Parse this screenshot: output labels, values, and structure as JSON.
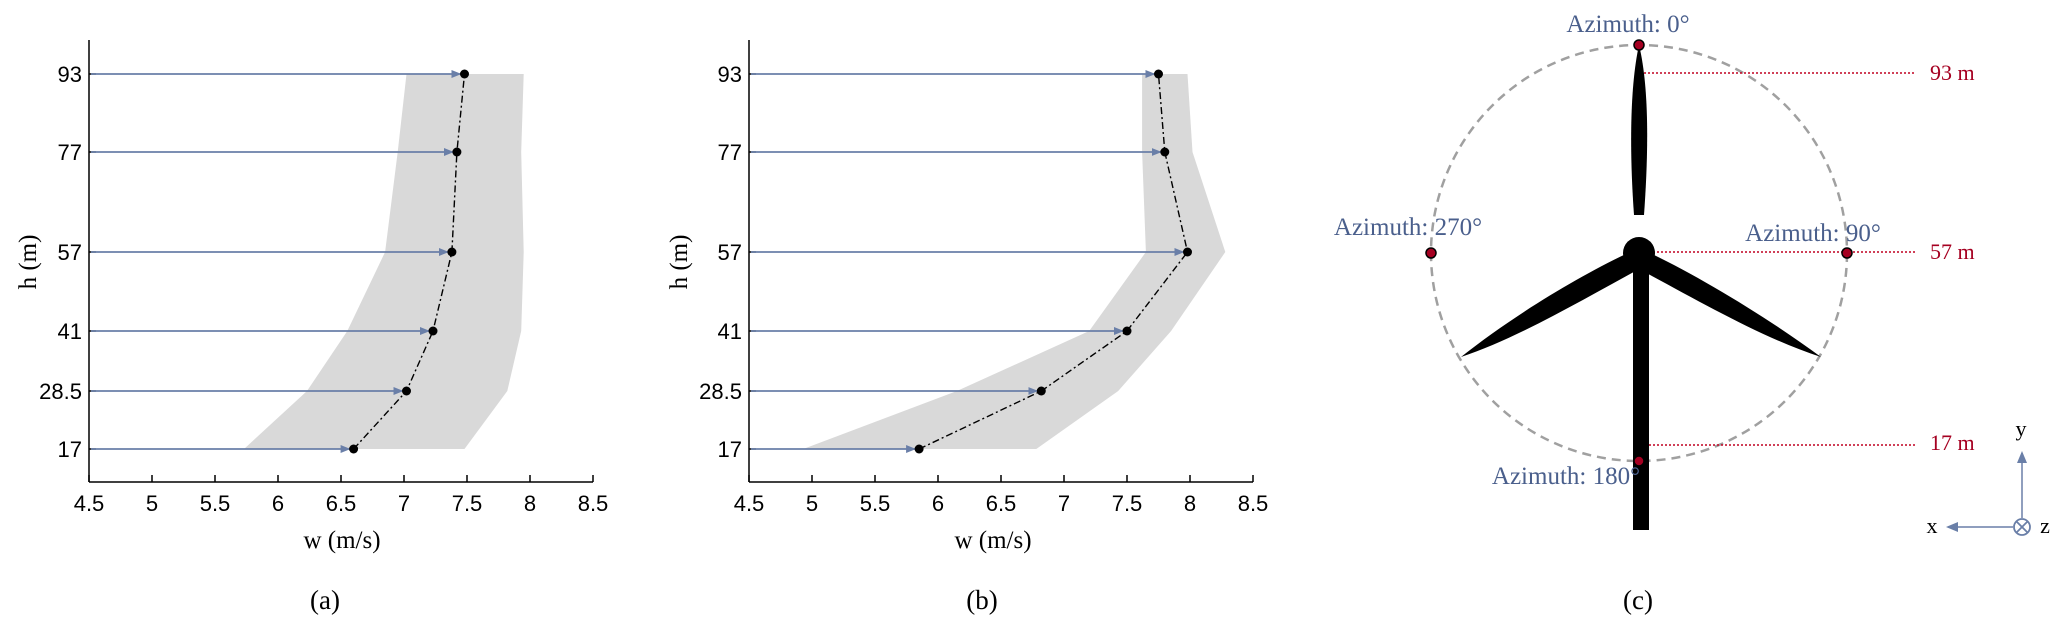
{
  "chart_data": [
    {
      "type": "line",
      "panel_label": "(a)",
      "xlabel": "w (m/s)",
      "ylabel": "h (m)",
      "xlim": [
        4.5,
        8.5
      ],
      "xticks": [
        "4.5",
        "5",
        "5.5",
        "6",
        "6.5",
        "7",
        "7.5",
        "8",
        "8.5"
      ],
      "yticks": [
        "17",
        "28.5",
        "41",
        "57",
        "77",
        "93"
      ],
      "heights": [
        17,
        28.5,
        41,
        57,
        77,
        93
      ],
      "mean": [
        6.6,
        7.02,
        7.23,
        7.38,
        7.42,
        7.48
      ],
      "band_lower": [
        5.73,
        6.23,
        6.55,
        6.85,
        6.95,
        7.02
      ],
      "band_upper": [
        7.48,
        7.82,
        7.93,
        7.95,
        7.93,
        7.95
      ],
      "colors": {
        "band": "#d9d9d9",
        "arrow": "#6a7fa8",
        "line": "#000000"
      }
    },
    {
      "type": "line",
      "panel_label": "(b)",
      "xlabel": "w (m/s)",
      "ylabel": "h (m)",
      "xlim": [
        4.5,
        8.5
      ],
      "xticks": [
        "4.5",
        "5",
        "5.5",
        "6",
        "6.5",
        "7",
        "7.5",
        "8",
        "8.5"
      ],
      "yticks": [
        "17",
        "28.5",
        "41",
        "57",
        "77",
        "93"
      ],
      "heights": [
        17,
        28.5,
        41,
        57,
        77,
        93
      ],
      "mean": [
        5.85,
        6.82,
        7.5,
        7.98,
        7.8,
        7.75
      ],
      "band_lower": [
        4.93,
        6.15,
        7.2,
        7.65,
        7.62,
        7.62
      ],
      "band_upper": [
        6.78,
        7.43,
        7.85,
        8.28,
        8.02,
        7.98
      ],
      "colors": {
        "band": "#d9d9d9",
        "arrow": "#6a7fa8",
        "line": "#000000"
      }
    }
  ],
  "turbine": {
    "panel_label": "(c)",
    "azimuth_labels": [
      "Azimuth: 0°",
      "Azimuth: 90°",
      "Azimuth: 180°",
      "Azimuth: 270°"
    ],
    "height_labels": [
      "93 m",
      "57 m",
      "17 m"
    ],
    "axes": {
      "y": "y",
      "x": "x",
      "z": "z"
    },
    "colors": {
      "circle": "#a0a0a0",
      "height_line": "#c00020",
      "azimuth_text": "#4a5f8c",
      "turbine": "#000000"
    }
  }
}
